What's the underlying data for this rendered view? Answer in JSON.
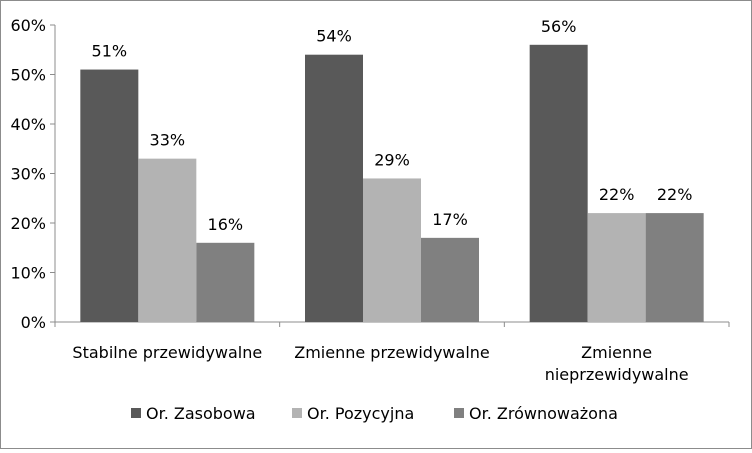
{
  "chart_data": {
    "type": "bar",
    "categories": [
      [
        "Stabilne przewidywalne"
      ],
      [
        "Zmienne przewidywalne"
      ],
      [
        "Zmienne",
        "nieprzewidywalne"
      ]
    ],
    "series": [
      {
        "name": "Or. Zasobowa",
        "values": [
          51,
          54,
          56
        ],
        "labels": [
          "51%",
          "54%",
          "56%"
        ],
        "color": "#595959"
      },
      {
        "name": "Or. Pozycyjna",
        "values": [
          33,
          29,
          22
        ],
        "labels": [
          "33%",
          "29%",
          "22%"
        ],
        "color": "#b3b3b3"
      },
      {
        "name": "Or. Zrównoważona",
        "values": [
          16,
          17,
          22
        ],
        "labels": [
          "16%",
          "17%",
          "22%"
        ],
        "color": "#808080"
      }
    ],
    "yticks": [
      "0%",
      "10%",
      "20%",
      "30%",
      "40%",
      "50%",
      "60%"
    ],
    "ylim": [
      0,
      60
    ],
    "legend": "bottom",
    "grid": false
  }
}
